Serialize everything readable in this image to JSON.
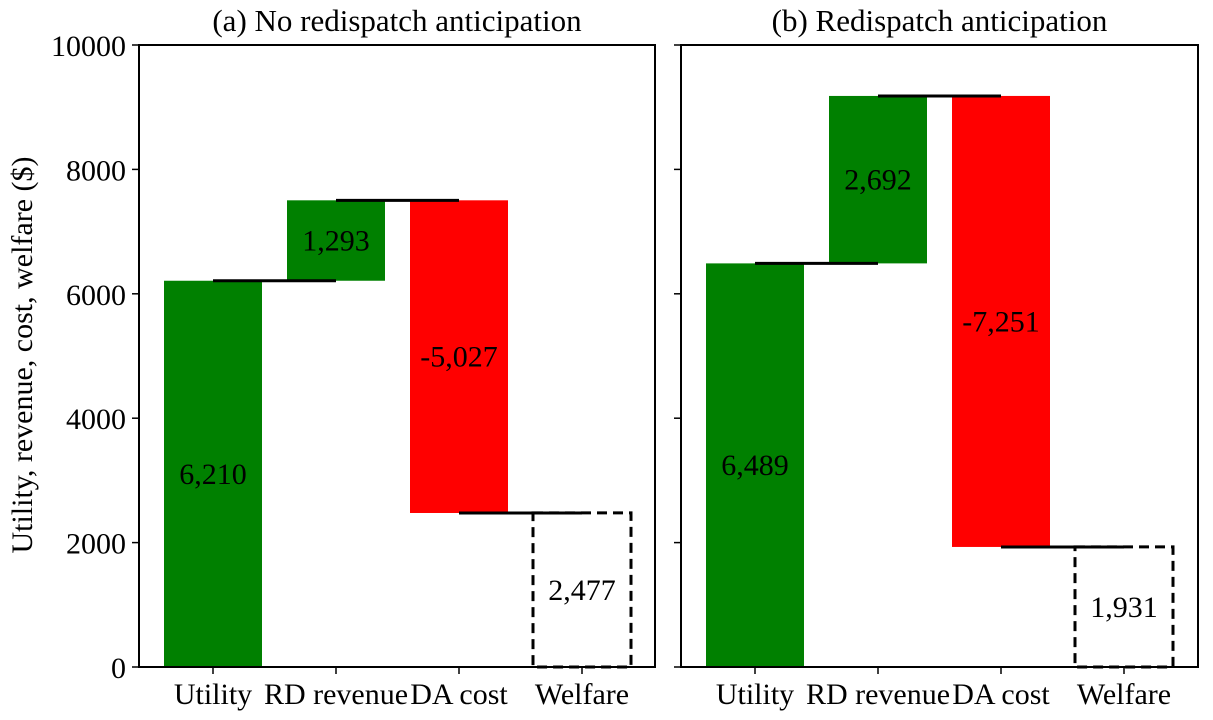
{
  "chart_data": {
    "type": "bar",
    "subtype": "waterfall",
    "ylabel": "Utility, revenue, cost, welfare ($)",
    "ylim": [
      0,
      10000
    ],
    "yticks": [
      "0",
      "2000",
      "4000",
      "6000",
      "8000",
      "10000"
    ],
    "categories": [
      "Utility",
      "RD revenue",
      "DA cost",
      "Welfare"
    ],
    "colors": {
      "positive": "#008000",
      "negative": "#ff0000",
      "total_stroke": "#000000"
    },
    "panels": [
      {
        "title": "(a) No redispatch anticipation",
        "steps": [
          {
            "category": "Utility",
            "value": 6210,
            "label": "6,210"
          },
          {
            "category": "RD revenue",
            "value": 1293,
            "label": "1,293"
          },
          {
            "category": "DA cost",
            "value": -5027,
            "label": "-5,027"
          },
          {
            "category": "Welfare",
            "value": 2477,
            "label": "2,477",
            "total": true
          }
        ]
      },
      {
        "title": "(b) Redispatch anticipation",
        "steps": [
          {
            "category": "Utility",
            "value": 6489,
            "label": "6,489"
          },
          {
            "category": "RD revenue",
            "value": 2692,
            "label": "2,692"
          },
          {
            "category": "DA cost",
            "value": -7251,
            "label": "-7,251"
          },
          {
            "category": "Welfare",
            "value": 1931,
            "label": "1,931",
            "total": true
          }
        ]
      }
    ]
  }
}
